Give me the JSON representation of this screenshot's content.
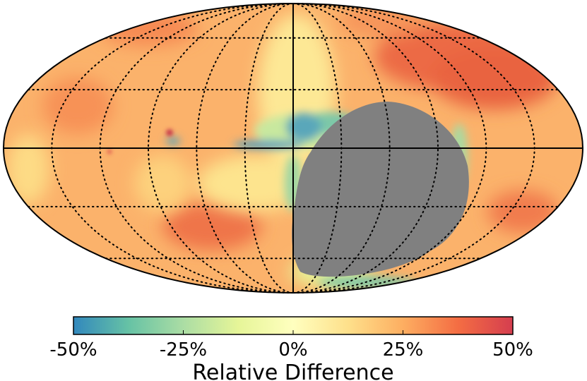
{
  "chart_data": {
    "type": "heatmap",
    "projection": "Mollweide",
    "title": "",
    "colorbar": {
      "label": "Relative Difference",
      "ticks": [
        "-50%",
        "-25%",
        "0%",
        "25%",
        "50%"
      ],
      "tick_values": [
        -50,
        -25,
        0,
        25,
        50
      ],
      "range": [
        -50,
        50
      ],
      "colormap": "Spectral_r",
      "stops": [
        "#3288bd",
        "#66c2a5",
        "#abdda4",
        "#e6f598",
        "#ffffbf",
        "#fee08b",
        "#fdae61",
        "#f46d43",
        "#d53e4f"
      ]
    },
    "grid": {
      "style": "dotted",
      "longitude_lines_deg": [
        -150,
        -120,
        -90,
        -60,
        -30,
        30,
        60,
        90,
        120,
        150
      ],
      "latitude_lines_deg": [
        -60,
        -30,
        30,
        60
      ],
      "equator_solid": true,
      "central_meridian_solid": true
    },
    "masked_region": {
      "color": "#808080",
      "description_value": "masked (no data)"
    }
  }
}
